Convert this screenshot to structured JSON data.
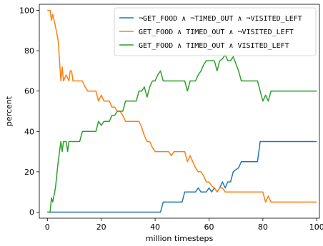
{
  "chart_data": {
    "type": "line",
    "xlabel": "million timesteps",
    "ylabel": "percent",
    "xlim": [
      -3,
      101
    ],
    "ylim": [
      -3,
      103
    ],
    "x_ticks": [
      0,
      20,
      40,
      60,
      80,
      100
    ],
    "y_ticks": [
      0,
      20,
      40,
      60,
      80,
      100
    ],
    "grid": false,
    "legend_position": "top-right",
    "series": [
      {
        "name": "¬GET_FOOD ∧ ¬TIMED_OUT ∧ ¬VISITED_LEFT",
        "color": "#1f77b4",
        "points": [
          [
            0,
            0
          ],
          [
            42,
            0
          ],
          [
            43,
            5
          ],
          [
            50,
            5
          ],
          [
            51,
            10
          ],
          [
            55,
            10
          ],
          [
            56,
            12
          ],
          [
            57,
            10
          ],
          [
            59,
            10
          ],
          [
            60,
            12
          ],
          [
            61,
            10
          ],
          [
            62,
            12
          ],
          [
            63,
            10
          ],
          [
            64,
            12
          ],
          [
            65,
            15
          ],
          [
            66,
            12
          ],
          [
            67,
            15
          ],
          [
            68,
            15
          ],
          [
            69,
            20
          ],
          [
            71,
            22
          ],
          [
            72,
            25
          ],
          [
            78,
            25
          ],
          [
            79,
            35
          ],
          [
            100,
            35
          ]
        ]
      },
      {
        "name": "GET_FOOD ∧ TIMED_OUT ∧ ¬VISITED_LEFT",
        "color": "#ff7f0e",
        "points": [
          [
            0,
            100
          ],
          [
            1,
            100
          ],
          [
            1.5,
            95
          ],
          [
            2,
            98
          ],
          [
            3,
            92
          ],
          [
            4,
            85
          ],
          [
            4.5,
            75
          ],
          [
            5,
            65
          ],
          [
            5.5,
            72
          ],
          [
            6,
            65
          ],
          [
            7,
            68
          ],
          [
            8,
            65
          ],
          [
            8.5,
            70
          ],
          [
            9,
            70
          ],
          [
            9.5,
            65
          ],
          [
            11,
            65
          ],
          [
            12,
            65
          ],
          [
            13,
            65
          ],
          [
            14,
            62
          ],
          [
            15,
            60
          ],
          [
            18,
            60
          ],
          [
            19,
            55
          ],
          [
            20,
            58
          ],
          [
            21,
            55
          ],
          [
            23,
            55
          ],
          [
            24,
            52
          ],
          [
            25,
            52
          ],
          [
            26,
            50
          ],
          [
            27,
            50
          ],
          [
            28,
            48
          ],
          [
            29,
            45
          ],
          [
            34,
            45
          ],
          [
            35,
            42
          ],
          [
            36,
            38
          ],
          [
            37,
            35
          ],
          [
            38,
            35
          ],
          [
            39,
            32
          ],
          [
            40,
            30
          ],
          [
            45,
            30
          ],
          [
            46,
            28
          ],
          [
            47,
            30
          ],
          [
            51,
            30
          ],
          [
            52,
            25
          ],
          [
            53,
            28
          ],
          [
            54,
            25
          ],
          [
            55,
            22
          ],
          [
            56,
            20
          ],
          [
            57,
            20
          ],
          [
            58,
            18
          ],
          [
            59,
            15
          ],
          [
            60,
            15
          ],
          [
            61,
            13
          ],
          [
            62,
            12
          ],
          [
            63,
            10
          ],
          [
            64,
            12
          ],
          [
            65,
            12
          ],
          [
            66,
            10
          ],
          [
            80,
            10
          ],
          [
            81,
            5
          ],
          [
            82,
            8
          ],
          [
            83,
            5
          ],
          [
            100,
            5
          ]
        ]
      },
      {
        "name": "GET_FOOD ∧ TIMED_OUT ∧ VISITED_LEFT",
        "color": "#2ca02c",
        "points": [
          [
            0,
            0
          ],
          [
            1,
            0
          ],
          [
            1.5,
            7
          ],
          [
            2,
            5
          ],
          [
            3,
            12
          ],
          [
            4,
            25
          ],
          [
            5,
            35
          ],
          [
            5.5,
            30
          ],
          [
            6,
            35
          ],
          [
            7,
            35
          ],
          [
            7.5,
            30
          ],
          [
            8,
            35
          ],
          [
            11,
            35
          ],
          [
            12,
            35
          ],
          [
            13,
            40
          ],
          [
            18,
            40
          ],
          [
            19,
            45
          ],
          [
            20,
            43
          ],
          [
            21,
            45
          ],
          [
            23,
            45
          ],
          [
            24,
            48
          ],
          [
            25,
            48
          ],
          [
            26,
            50
          ],
          [
            28,
            50
          ],
          [
            29,
            55
          ],
          [
            33,
            55
          ],
          [
            34,
            60
          ],
          [
            35,
            60
          ],
          [
            36,
            62
          ],
          [
            37,
            57
          ],
          [
            38,
            62
          ],
          [
            39,
            65
          ],
          [
            40,
            65
          ],
          [
            41,
            68
          ],
          [
            42,
            70
          ],
          [
            43,
            65
          ],
          [
            51,
            65
          ],
          [
            52,
            60
          ],
          [
            53,
            65
          ],
          [
            55,
            65
          ],
          [
            56,
            68
          ],
          [
            57,
            70
          ],
          [
            58,
            73
          ],
          [
            59,
            75
          ],
          [
            62,
            75
          ],
          [
            63,
            70
          ],
          [
            64,
            75
          ],
          [
            65,
            76
          ],
          [
            66,
            78
          ],
          [
            67,
            75
          ],
          [
            68,
            75
          ],
          [
            69,
            77
          ],
          [
            71,
            70
          ],
          [
            72,
            65
          ],
          [
            78,
            65
          ],
          [
            79,
            60
          ],
          [
            80,
            55
          ],
          [
            81,
            58
          ],
          [
            82,
            55
          ],
          [
            83,
            60
          ],
          [
            100,
            60
          ]
        ]
      }
    ]
  }
}
